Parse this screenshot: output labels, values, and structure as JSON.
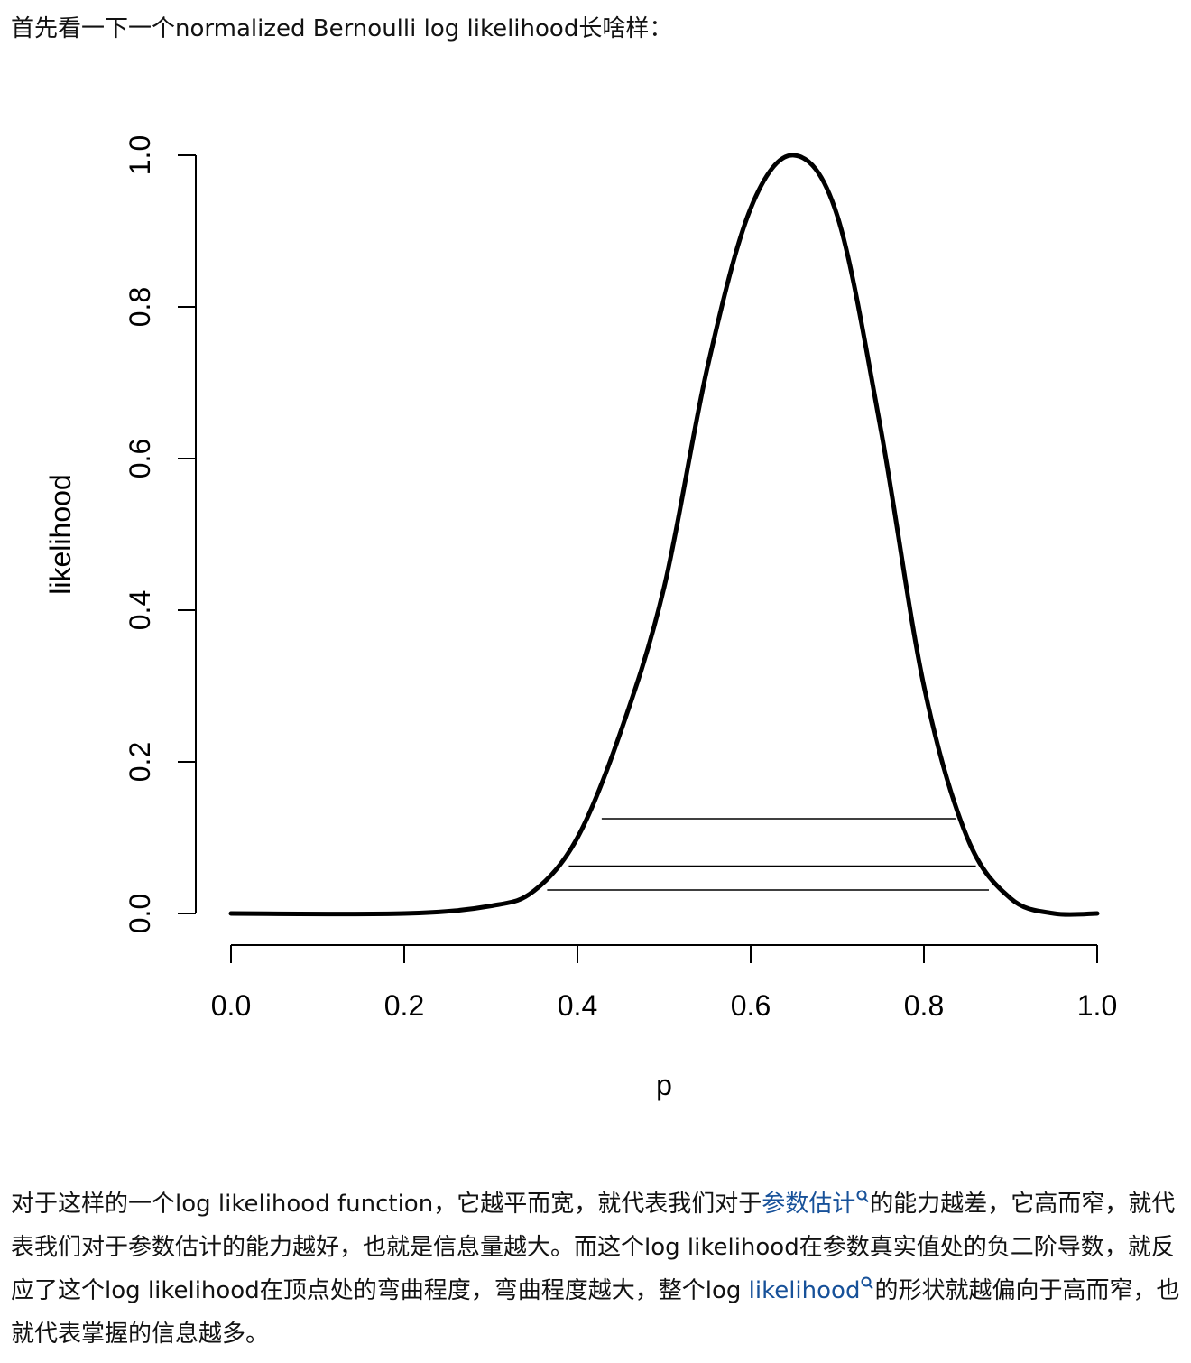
{
  "intro": "首先看一下一个normalized Bernoulli log likelihood长啥样：",
  "chart_data": {
    "type": "line",
    "title": "",
    "xlabel": "p",
    "ylabel": "likelihood",
    "xlim": [
      0.0,
      1.0
    ],
    "ylim": [
      0.0,
      1.0
    ],
    "xticks": [
      "0.0",
      "0.2",
      "0.4",
      "0.6",
      "0.8",
      "1.0"
    ],
    "yticks": [
      "0.0",
      "0.2",
      "0.4",
      "0.6",
      "0.8",
      "1.0"
    ],
    "grid": false,
    "legend": "none",
    "series": [
      {
        "x": [
          0.0,
          0.2,
          0.3,
          0.35,
          0.4,
          0.45,
          0.5,
          0.55,
          0.6,
          0.65,
          0.7,
          0.75,
          0.8,
          0.85,
          0.9,
          0.95,
          1.0
        ],
        "y": [
          0.0,
          0.0,
          0.01,
          0.03,
          0.1,
          0.24,
          0.43,
          0.72,
          0.93,
          1.0,
          0.92,
          0.64,
          0.3,
          0.1,
          0.02,
          0.0,
          0.0
        ]
      }
    ],
    "horizontal_segments": [
      {
        "y": 0.125,
        "x_from": 0.428,
        "x_to": 0.837
      },
      {
        "y": 0.0625,
        "x_from": 0.39,
        "x_to": 0.86
      },
      {
        "y": 0.031,
        "x_from": 0.365,
        "x_to": 0.875
      }
    ]
  },
  "outro": {
    "part1": "对于这样的一个log likelihood function，它越平而宽，就代表我们对于",
    "link1": "参数估计",
    "part2": "的能力越差，它高而窄，就代表我们对于参数估计的能力越好，也就是信息量越大。而这个log likelihood在参数真实值处的负二阶导数，就反应了这个log likelihood在顶点处的弯曲程度，弯曲程度越大，整个log ",
    "link2": "likelihood",
    "part3": "的形状就越偏向于高而窄，也就代表掌握的信息越多。"
  },
  "colors": {
    "link": "#175199",
    "text": "#121212",
    "curve": "#000000"
  }
}
